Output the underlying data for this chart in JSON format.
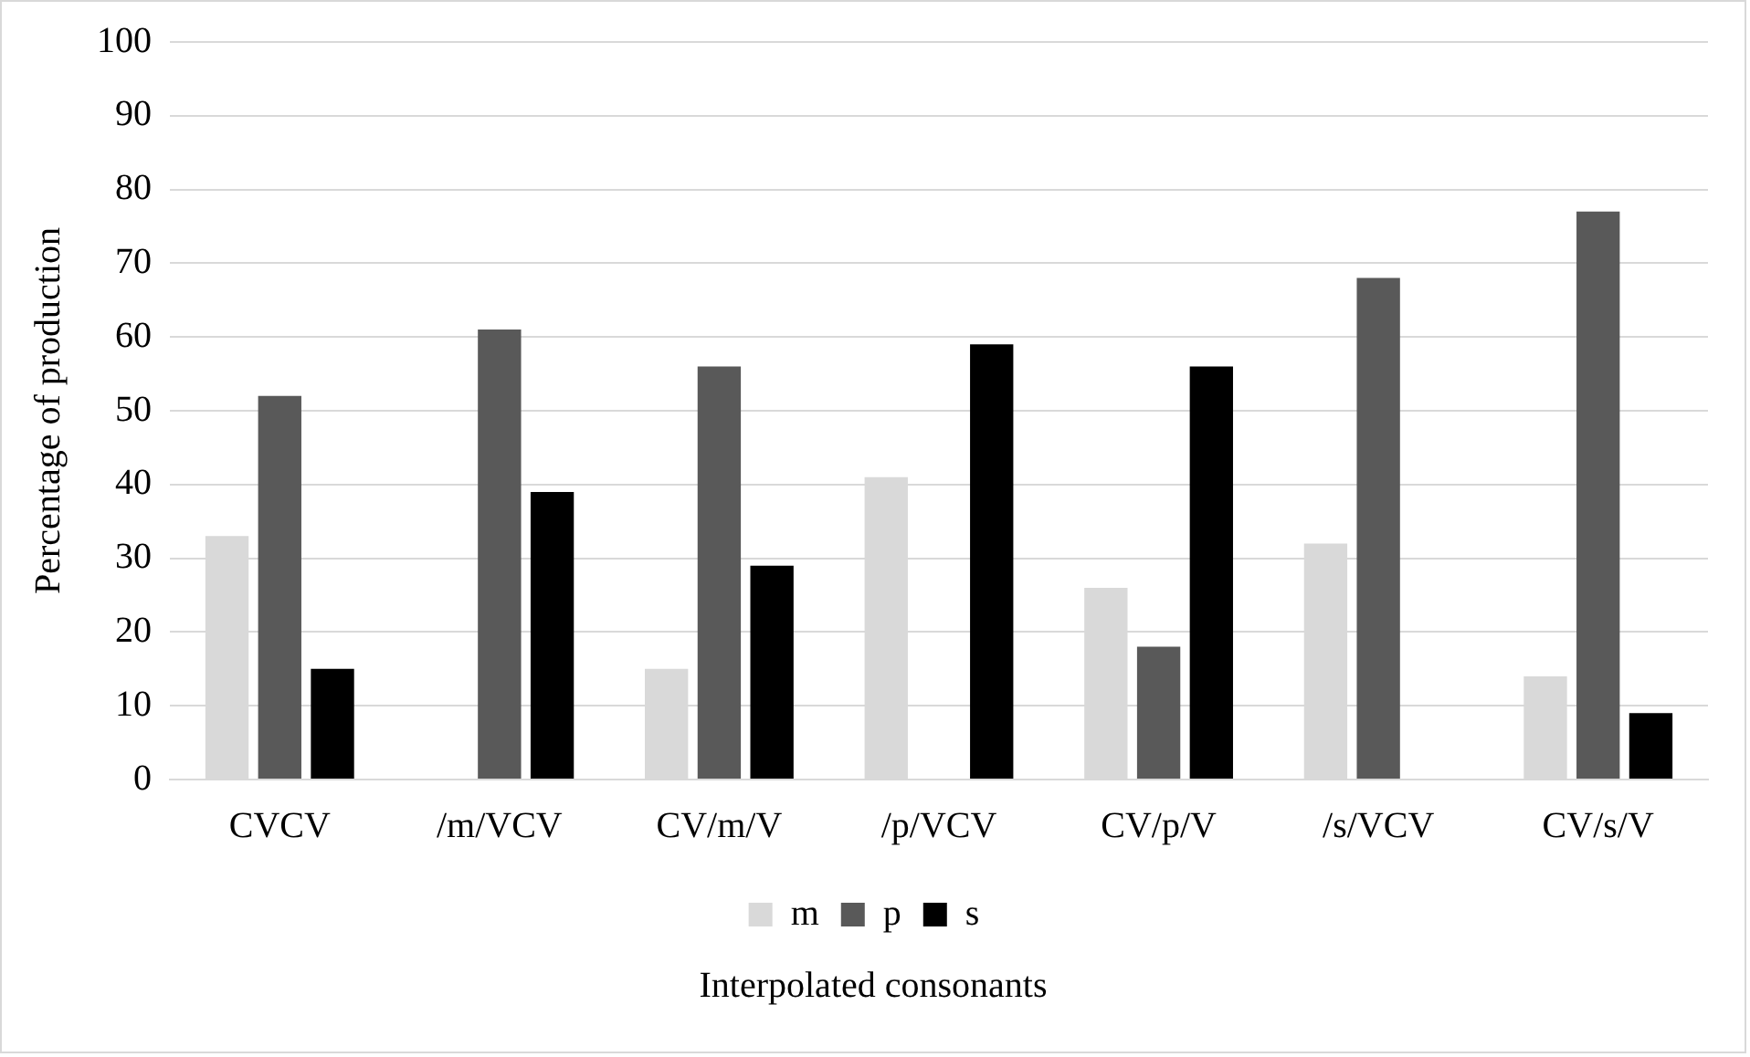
{
  "chart_data": {
    "type": "bar",
    "xlabel": "Interpolated consonants",
    "ylabel": "Percentage of production",
    "categories": [
      "CVCV",
      "/m/VCV",
      "CV/m/V",
      "/p/VCV",
      "CV/p/V",
      "/s/VCV",
      "CV/s/V"
    ],
    "series": [
      {
        "name": "m",
        "color": "#d9d9d9",
        "values": [
          33,
          0,
          15,
          41,
          26,
          32,
          14
        ]
      },
      {
        "name": "p",
        "color": "#595959",
        "values": [
          52,
          61,
          56,
          0,
          18,
          68,
          77
        ]
      },
      {
        "name": "s",
        "color": "#000000",
        "values": [
          15,
          39,
          29,
          59,
          56,
          0,
          9
        ]
      }
    ],
    "ylim": [
      0,
      100
    ],
    "yticks": [
      0,
      10,
      20,
      30,
      40,
      50,
      60,
      70,
      80,
      90,
      100
    ],
    "grid": "y",
    "legend": "bottom"
  }
}
